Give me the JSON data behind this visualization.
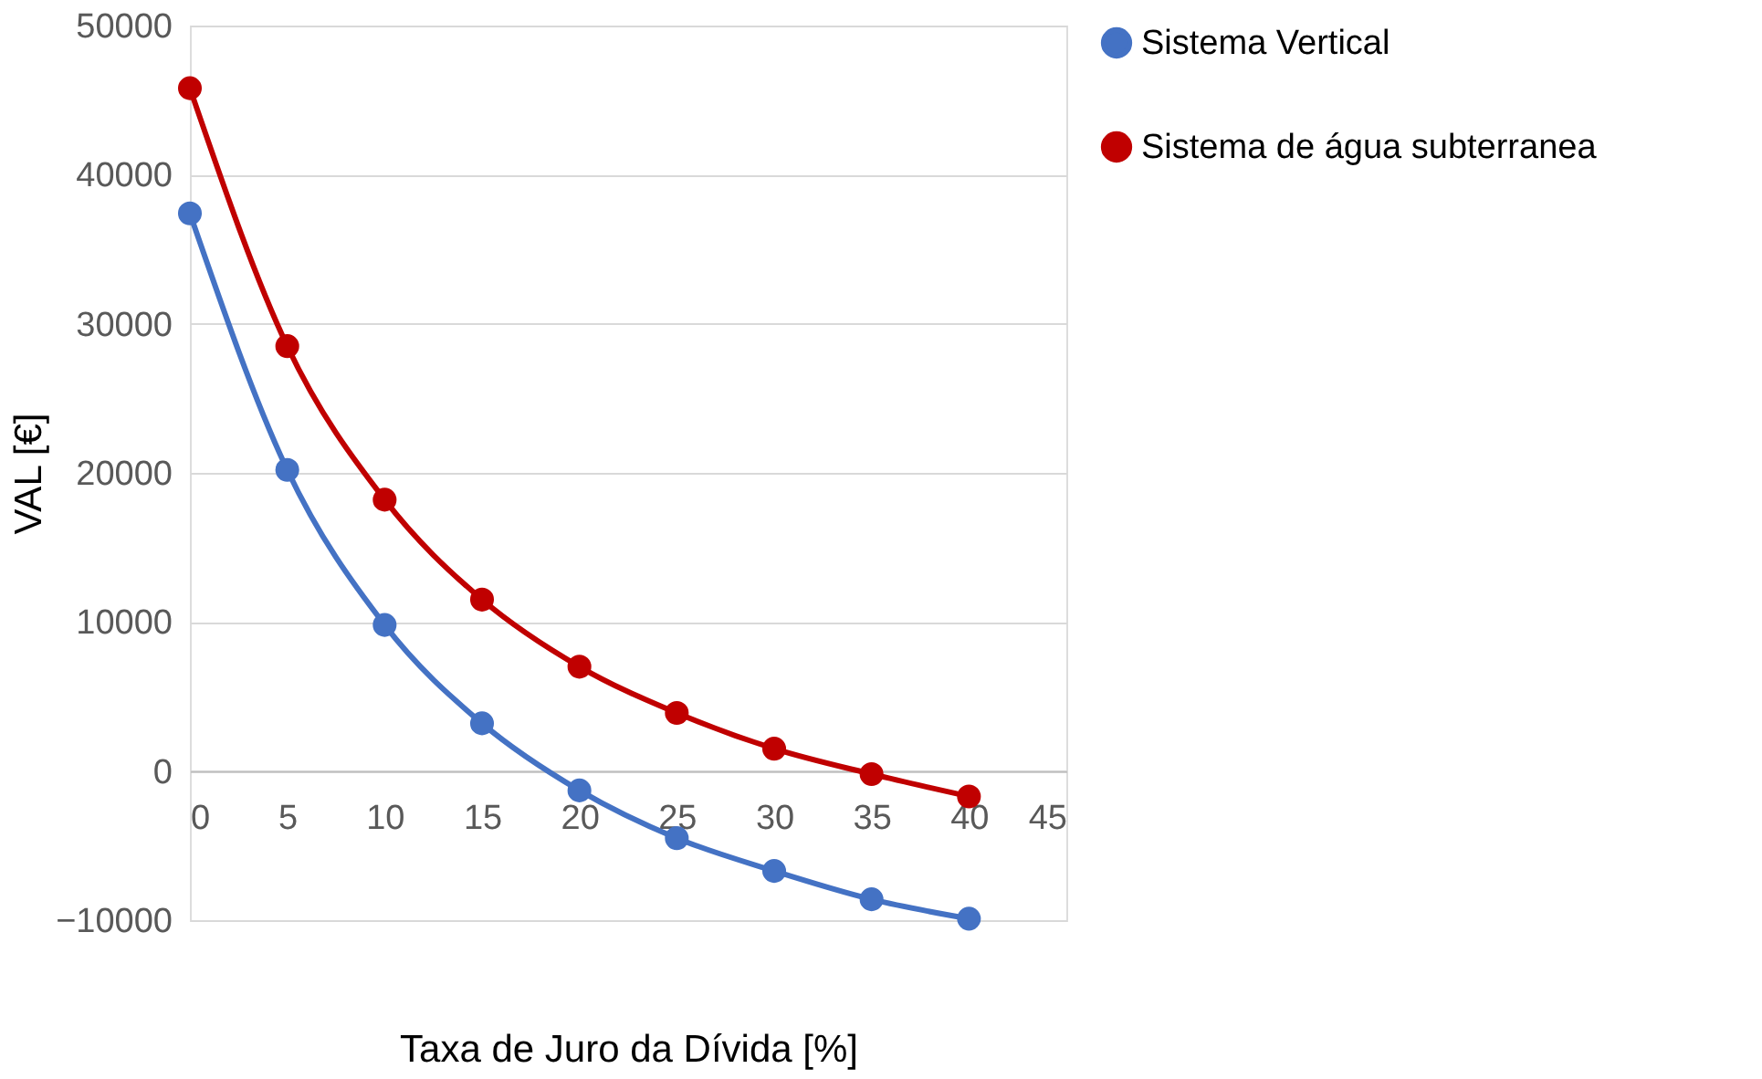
{
  "chart_data": {
    "type": "line",
    "xlabel": "Taxa de Juro da Dívida [%]",
    "ylabel": "VAL [€]",
    "x": [
      0,
      5,
      10,
      15,
      20,
      25,
      30,
      35,
      40
    ],
    "series": [
      {
        "name": "Sistema Vertical",
        "color": "#4472c4",
        "values": [
          37400,
          20200,
          9800,
          3200,
          -1300,
          -4500,
          -6700,
          -8600,
          -9900
        ]
      },
      {
        "name": "Sistema de água subterranea",
        "color": "#c00000",
        "values": [
          45800,
          28500,
          18200,
          11500,
          7000,
          3900,
          1500,
          -200,
          -1700
        ]
      }
    ],
    "xlim": [
      0,
      45
    ],
    "xticks": [
      0,
      5,
      10,
      15,
      20,
      25,
      30,
      35,
      40,
      45
    ],
    "ylim": [
      -10000,
      50000
    ],
    "yticks": [
      -10000,
      0,
      10000,
      20000,
      30000,
      40000,
      50000
    ],
    "grid": "y",
    "legend": "right",
    "marker": "circle",
    "line_style": "solid"
  }
}
